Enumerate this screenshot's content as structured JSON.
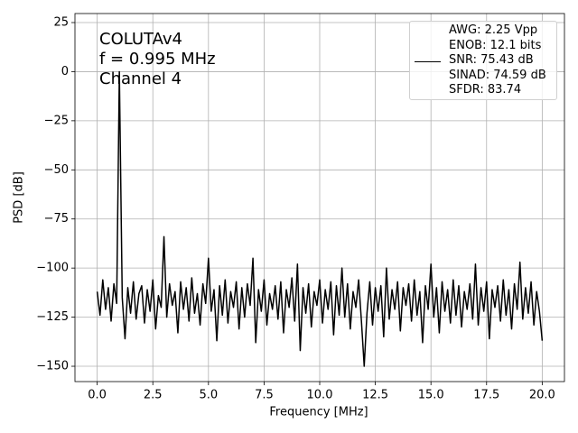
{
  "chart_data": {
    "type": "line",
    "xlabel": "Frequency [MHz]",
    "ylabel": "PSD [dB]",
    "annotations": [
      "COLUTAv4",
      "f = 0.995 MHz",
      "Channel 4"
    ],
    "x": [
      0,
      0.125,
      0.25,
      0.375,
      0.5,
      0.625,
      0.75,
      0.875,
      0.995,
      1.125,
      1.25,
      1.375,
      1.5,
      1.625,
      1.75,
      1.875,
      2,
      2.125,
      2.25,
      2.375,
      2.5,
      2.625,
      2.75,
      2.875,
      3,
      3.125,
      3.25,
      3.375,
      3.5,
      3.625,
      3.75,
      3.875,
      4,
      4.125,
      4.25,
      4.375,
      4.5,
      4.625,
      4.75,
      4.875,
      5,
      5.125,
      5.25,
      5.375,
      5.5,
      5.625,
      5.75,
      5.875,
      6,
      6.125,
      6.25,
      6.375,
      6.5,
      6.625,
      6.75,
      6.875,
      7,
      7.125,
      7.25,
      7.375,
      7.5,
      7.625,
      7.75,
      7.875,
      8,
      8.125,
      8.25,
      8.375,
      8.5,
      8.625,
      8.75,
      8.875,
      9,
      9.125,
      9.25,
      9.375,
      9.5,
      9.625,
      9.75,
      9.875,
      10,
      10.125,
      10.25,
      10.375,
      10.5,
      10.625,
      10.75,
      10.875,
      11,
      11.125,
      11.25,
      11.375,
      11.5,
      11.625,
      11.75,
      11.875,
      12,
      12.125,
      12.25,
      12.375,
      12.5,
      12.625,
      12.75,
      12.875,
      13,
      13.125,
      13.25,
      13.375,
      13.5,
      13.625,
      13.75,
      13.875,
      14,
      14.125,
      14.25,
      14.375,
      14.5,
      14.625,
      14.75,
      14.875,
      15,
      15.125,
      15.25,
      15.375,
      15.5,
      15.625,
      15.75,
      15.875,
      16,
      16.125,
      16.25,
      16.375,
      16.5,
      16.625,
      16.75,
      16.875,
      17,
      17.125,
      17.25,
      17.375,
      17.5,
      17.625,
      17.75,
      17.875,
      18,
      18.125,
      18.25,
      18.375,
      18.5,
      18.625,
      18.75,
      18.875,
      19,
      19.125,
      19.25,
      19.375,
      19.5,
      19.625,
      19.75,
      19.875,
      20
    ],
    "series": [
      {
        "name": "AWG: 2.25 Vpp\nENOB: 12.1 bits\nSNR: 75.43 dB\nSINAD: 74.59 dB\nSFDR: 83.74",
        "color": "#000000",
        "values": [
          -112,
          -124,
          -106,
          -121,
          -110,
          -127,
          -108,
          -118,
          0,
          -115,
          -136,
          -110,
          -123,
          -107,
          -126,
          -113,
          -109,
          -128,
          -111,
          -122,
          -106,
          -131,
          -114,
          -120,
          -84,
          -125,
          -108,
          -119,
          -112,
          -133,
          -107,
          -121,
          -110,
          -127,
          -105,
          -123,
          -113,
          -129,
          -108,
          -118,
          -95,
          -122,
          -111,
          -137,
          -109,
          -124,
          -106,
          -128,
          -112,
          -120,
          -107,
          -131,
          -110,
          -125,
          -108,
          -119,
          -95,
          -138,
          -111,
          -122,
          -106,
          -129,
          -113,
          -121,
          -109,
          -126,
          -107,
          -133,
          -111,
          -120,
          -105,
          -127,
          -98,
          -142,
          -110,
          -123,
          -108,
          -130,
          -112,
          -119,
          -106,
          -128,
          -111,
          -121,
          -107,
          -134,
          -109,
          -124,
          -100,
          -125,
          -108,
          -131,
          -112,
          -120,
          -106,
          -127,
          -150,
          -123,
          -107,
          -129,
          -110,
          -122,
          -109,
          -135,
          -100,
          -126,
          -111,
          -121,
          -107,
          -132,
          -110,
          -119,
          -108,
          -127,
          -106,
          -124,
          -112,
          -138,
          -109,
          -121,
          -98,
          -125,
          -110,
          -133,
          -107,
          -122,
          -111,
          -128,
          -106,
          -124,
          -109,
          -130,
          -112,
          -121,
          -108,
          -126,
          -98,
          -129,
          -110,
          -122,
          -107,
          -136,
          -111,
          -120,
          -109,
          -127,
          -106,
          -124,
          -111,
          -131,
          -108,
          -121,
          -97,
          -126,
          -110,
          -123,
          -107,
          -129,
          -112,
          -122,
          -137
        ]
      }
    ],
    "xlim": [
      -1.0,
      21.0
    ],
    "ylim": [
      -157.8,
      29.6
    ],
    "xticks": [
      {
        "value": 0,
        "label": "0.0"
      },
      2.5,
      {
        "value": 5,
        "label": "5.0"
      },
      7.5,
      {
        "value": 10,
        "label": "10.0"
      },
      12.5,
      {
        "value": 15,
        "label": "15.0"
      },
      17.5,
      {
        "value": 20,
        "label": "20.0"
      }
    ],
    "yticks": [
      {
        "value": -150,
        "label": "−150"
      },
      {
        "value": -125,
        "label": "−125"
      },
      {
        "value": -100,
        "label": "−100"
      },
      {
        "value": -75,
        "label": "−75"
      },
      {
        "value": -50,
        "label": "−50"
      },
      {
        "value": -25,
        "label": "−25"
      },
      0,
      25
    ],
    "grid": true,
    "legend": "upper right"
  }
}
